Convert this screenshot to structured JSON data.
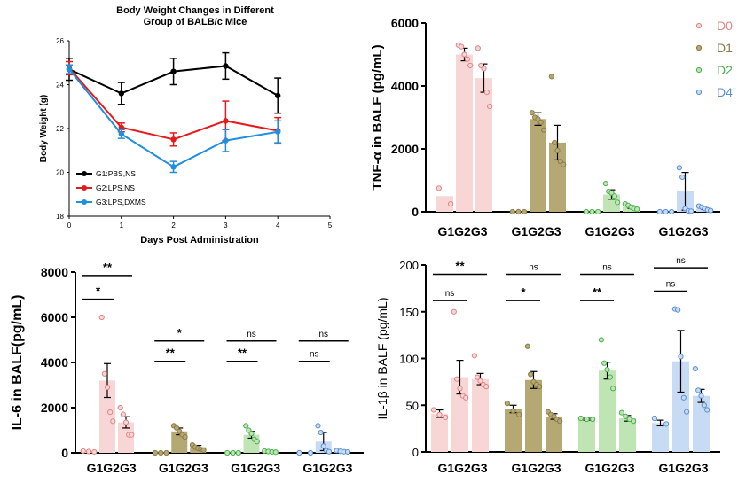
{
  "colors": {
    "G1": "#000000",
    "G2": "#e41a1c",
    "G3": "#1f8fe0",
    "D0": "#f8d6d6",
    "D0_dot": "#e08585",
    "D1": "#b6a873",
    "D1_dot": "#8a7c48",
    "D2": "#bfe5b4",
    "D2_dot": "#4caf50",
    "D4": "#c7dcf4",
    "D4_dot": "#5b8fd4"
  },
  "chart_data": [
    {
      "id": "body-weight",
      "type": "line",
      "title": [
        "Body Weight  Changes in Different",
        "Group of BALB/c Mice"
      ],
      "xlabel": "Days Post Administration",
      "ylabel": "Body Weight (g)",
      "xlim": [
        0,
        5
      ],
      "ylim": [
        18,
        26
      ],
      "xticks": [
        0,
        1,
        2,
        3,
        4,
        5
      ],
      "yticks": [
        18,
        20,
        22,
        24,
        26
      ],
      "x": [
        0,
        1,
        2,
        3,
        4
      ],
      "series": [
        {
          "name": "G1:PBS,NS",
          "color_key": "G1",
          "values": [
            24.7,
            23.6,
            24.6,
            24.85,
            23.5
          ],
          "err": [
            0.5,
            0.5,
            0.6,
            0.6,
            0.8
          ]
        },
        {
          "name": "G2:LPS,NS",
          "color_key": "G2",
          "values": [
            24.75,
            22.05,
            21.5,
            22.35,
            21.9
          ],
          "err": [
            0.3,
            0.2,
            0.3,
            0.9,
            0.6
          ]
        },
        {
          "name": "G3:LPS,DXMS",
          "color_key": "G3",
          "values": [
            24.7,
            21.75,
            20.25,
            21.45,
            21.85
          ],
          "err": [
            0.2,
            0.2,
            0.25,
            0.5,
            0.5
          ]
        }
      ]
    },
    {
      "id": "tnf",
      "type": "bar",
      "ylabel": "TNF-α in BALF (pg/mL)",
      "ylim": [
        0,
        6000
      ],
      "yticks": [
        0,
        2000,
        4000,
        6000
      ],
      "tick_labels": [
        "0",
        "2000",
        "4000",
        "6000"
      ],
      "group_labels": [
        "G1G2G3",
        "G1G2G3",
        "G1G2G3",
        "G1G2G3"
      ],
      "legend": [
        "D0",
        "D1",
        "D2",
        "D4"
      ],
      "groups": [
        {
          "color_key": "D0",
          "bars": [
            {
              "value": 500,
              "err": 0,
              "points": [
                750,
                250
              ]
            },
            {
              "value": 5000,
              "err": 200,
              "points": [
                5300,
                5250,
                5000,
                4850,
                4650
              ]
            },
            {
              "value": 4250,
              "err": 450,
              "points": [
                5200,
                4650,
                4550,
                3800,
                3350
              ]
            }
          ]
        },
        {
          "color_key": "D1",
          "bars": [
            {
              "value": 0,
              "err": 0,
              "points": [
                0,
                0,
                0
              ]
            },
            {
              "value": 2950,
              "err": 200,
              "points": [
                3150,
                3000,
                2950,
                2850,
                2600
              ]
            },
            {
              "value": 2200,
              "err": 550,
              "points": [
                4300,
                2200,
                1950,
                1600,
                1500
              ]
            }
          ]
        },
        {
          "color_key": "D2",
          "bars": [
            {
              "value": 0,
              "err": 0,
              "points": [
                0,
                0,
                0
              ]
            },
            {
              "value": 550,
              "err": 150,
              "points": [
                900,
                650,
                600,
                500,
                300
              ]
            },
            {
              "value": 150,
              "err": 40,
              "points": [
                250,
                200,
                150,
                100,
                80
              ]
            }
          ]
        },
        {
          "color_key": "D4",
          "bars": [
            {
              "value": 0,
              "err": 0,
              "points": [
                0,
                0,
                0
              ]
            },
            {
              "value": 650,
              "err": 600,
              "points": [
                1400,
                1100,
                100,
                30,
                20
              ]
            },
            {
              "value": 100,
              "err": 30,
              "points": [
                180,
                150,
                100,
                60,
                40
              ]
            }
          ]
        }
      ]
    },
    {
      "id": "il6",
      "type": "bar",
      "ylabel": "IL-6 in BALF(pg/mL)",
      "ylim": [
        0,
        8000
      ],
      "yticks": [
        0,
        2000,
        4000,
        6000,
        8000
      ],
      "tick_labels": [
        "0",
        "2000",
        "4000",
        "6000",
        "8000"
      ],
      "group_labels": [
        "G1G2G3",
        "G1G2G3",
        "G1G2G3",
        "G1G2G3"
      ],
      "groups": [
        {
          "color_key": "D0",
          "bars": [
            {
              "value": 60,
              "err": 0,
              "points": [
                80,
                60,
                40
              ]
            },
            {
              "value": 3200,
              "err": 750,
              "points": [
                6000,
                3500,
                2900,
                1800,
                1400
              ]
            },
            {
              "value": 1350,
              "err": 250,
              "points": [
                2000,
                1700,
                1350,
                800,
                800
              ]
            }
          ]
        },
        {
          "color_key": "D1",
          "bars": [
            {
              "value": 0,
              "err": 0,
              "points": [
                0,
                0,
                0
              ]
            },
            {
              "value": 950,
              "err": 150,
              "points": [
                1200,
                1100,
                950,
                800,
                700
              ]
            },
            {
              "value": 250,
              "err": 80,
              "points": [
                350,
                250,
                200,
                150,
                120
              ]
            }
          ]
        },
        {
          "color_key": "D2",
          "bars": [
            {
              "value": 0,
              "err": 0,
              "points": [
                0,
                0,
                0
              ]
            },
            {
              "value": 800,
              "err": 150,
              "points": [
                1200,
                1000,
                850,
                600,
                500
              ]
            },
            {
              "value": 50,
              "err": 20,
              "points": [
                80,
                60,
                40,
                30
              ]
            }
          ]
        },
        {
          "color_key": "D4",
          "bars": [
            {
              "value": 0,
              "err": 0,
              "points": [
                0,
                0
              ]
            },
            {
              "value": 500,
              "err": 400,
              "points": [
                1200,
                900,
                300,
                100,
                50
              ]
            },
            {
              "value": 60,
              "err": 20,
              "points": [
                100,
                70,
                50,
                40
              ]
            }
          ]
        }
      ],
      "annotations": [
        {
          "group": 0,
          "from": 0,
          "to": 1,
          "label": "*",
          "y": 6800
        },
        {
          "group": 0,
          "from": 0,
          "to": 2,
          "label": "**",
          "y": 7850
        },
        {
          "group": 1,
          "from": 0,
          "to": 1,
          "label": "**",
          "y": 4050
        },
        {
          "group": 1,
          "from": 0,
          "to": 2,
          "label": "*",
          "y": 4950
        },
        {
          "group": 2,
          "from": 0,
          "to": 1,
          "label": "**",
          "y": 4050
        },
        {
          "group": 2,
          "from": 0,
          "to": 2,
          "label": "ns",
          "y": 4950
        },
        {
          "group": 3,
          "from": 0,
          "to": 1,
          "label": "ns",
          "y": 4050
        },
        {
          "group": 3,
          "from": 0,
          "to": 2,
          "label": "ns",
          "y": 4950
        }
      ]
    },
    {
      "id": "il1b",
      "type": "bar",
      "ylabel": "IL-1β in BALF (pg/mL)",
      "ylim": [
        0,
        200
      ],
      "yticks": [
        0,
        50,
        100,
        150,
        200
      ],
      "tick_labels": [
        "0",
        "50",
        "100",
        "150",
        "200"
      ],
      "group_labels": [
        "G1G2G3",
        "G1G2G3",
        "G1G2G3",
        "G1G2G3"
      ],
      "groups": [
        {
          "color_key": "D0",
          "bars": [
            {
              "value": 41,
              "err": 4,
              "points": [
                45,
                40,
                37
              ]
            },
            {
              "value": 80,
              "err": 18,
              "points": [
                150,
                78,
                68,
                60,
                58
              ]
            },
            {
              "value": 78,
              "err": 6,
              "points": [
                103,
                80,
                76,
                72,
                70
              ]
            }
          ]
        },
        {
          "color_key": "D1",
          "bars": [
            {
              "value": 46,
              "err": 4,
              "points": [
                52,
                44,
                40
              ]
            },
            {
              "value": 77,
              "err": 9,
              "points": [
                113,
                83,
                75,
                72,
                70
              ]
            },
            {
              "value": 38,
              "err": 3,
              "points": [
                43,
                40,
                38,
                35,
                33
              ]
            }
          ]
        },
        {
          "color_key": "D2",
          "bars": [
            {
              "value": 35,
              "err": 1,
              "points": [
                36,
                35,
                35
              ]
            },
            {
              "value": 87,
              "err": 9,
              "points": [
                120,
                95,
                88,
                80,
                68
              ]
            },
            {
              "value": 36,
              "err": 3,
              "points": [
                42,
                38,
                35,
                33
              ]
            }
          ]
        },
        {
          "color_key": "D4",
          "bars": [
            {
              "value": 31,
              "err": 3,
              "points": [
                36,
                30
              ]
            },
            {
              "value": 97,
              "err": 33,
              "points": [
                153,
                152,
                102,
                58,
                43
              ]
            },
            {
              "value": 60,
              "err": 7,
              "points": [
                89,
                66,
                60,
                50,
                45
              ]
            }
          ]
        }
      ],
      "annotations": [
        {
          "group": 0,
          "from": 0,
          "to": 1,
          "label": "ns",
          "y": 162
        },
        {
          "group": 0,
          "from": 0,
          "to": 2,
          "label": "**",
          "y": 190
        },
        {
          "group": 1,
          "from": 0,
          "to": 1,
          "label": "*",
          "y": 162
        },
        {
          "group": 1,
          "from": 0,
          "to": 2,
          "label": "ns",
          "y": 190
        },
        {
          "group": 2,
          "from": 0,
          "to": 1,
          "label": "**",
          "y": 162
        },
        {
          "group": 2,
          "from": 0,
          "to": 2,
          "label": "ns",
          "y": 190
        },
        {
          "group": 3,
          "from": 0,
          "to": 1,
          "label": "ns",
          "y": 172
        },
        {
          "group": 3,
          "from": 0,
          "to": 2,
          "label": "ns",
          "y": 197
        }
      ]
    }
  ]
}
